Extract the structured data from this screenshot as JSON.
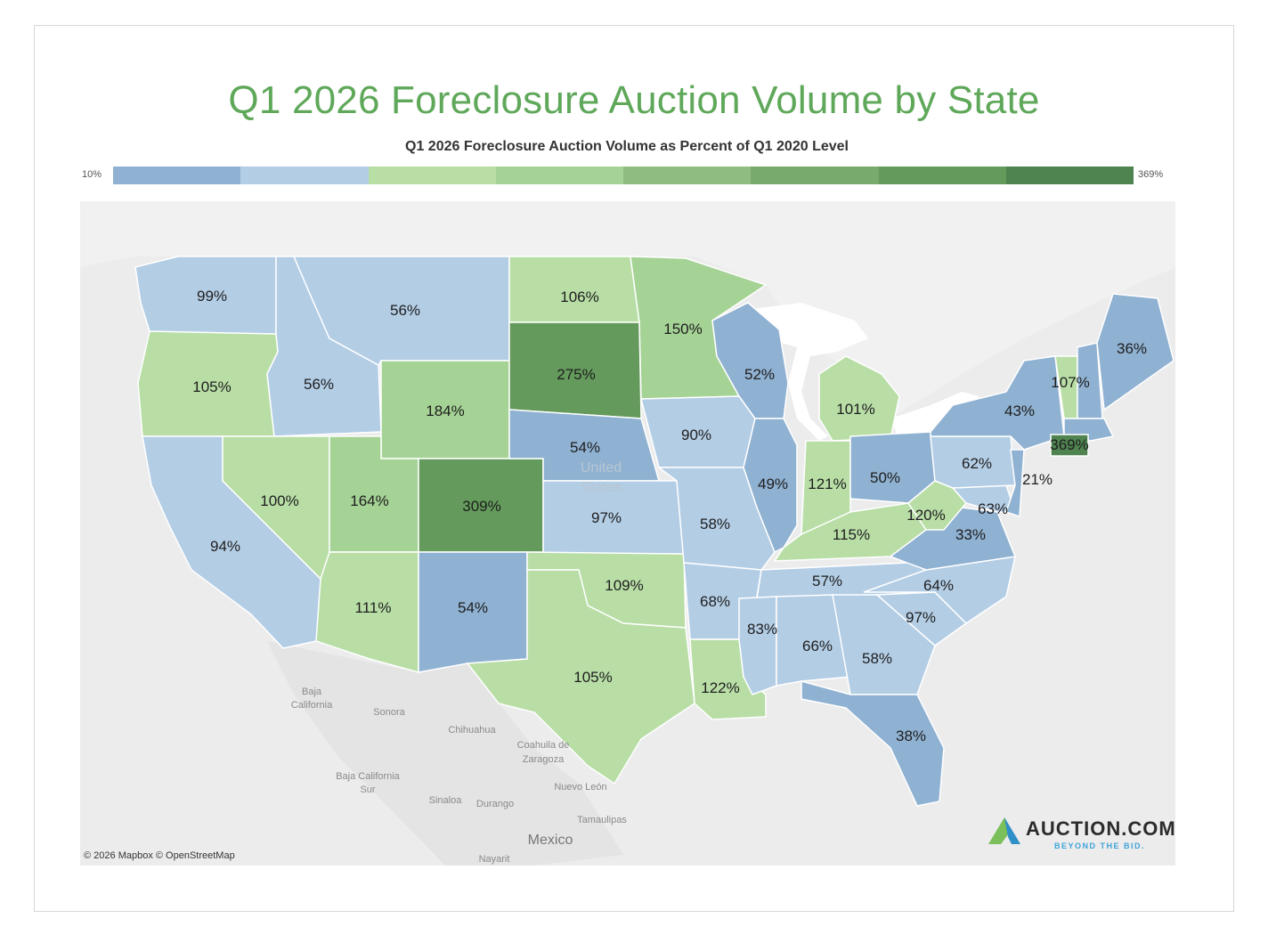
{
  "title": "Q1 2026 Foreclosure Auction Volume by State",
  "legend": {
    "label": "Q1 2026 Foreclosure Auction Volume as Percent of Q1 2020 Level",
    "min": "10%",
    "max": "369%",
    "colors": [
      "#8fb1d2",
      "#b3cde5",
      "#b8dea6",
      "#a5d295",
      "#8fbd7f",
      "#78aa6d",
      "#649a5c",
      "#4f8450"
    ]
  },
  "states": {
    "WA": "99%",
    "OR": "105%",
    "CA": "94%",
    "ID": "56%",
    "NV": "100%",
    "MT": "56%",
    "WY": "184%",
    "UT": "164%",
    "AZ": "111%",
    "CO": "309%",
    "NM": "54%",
    "ND": "106%",
    "SD": "275%",
    "NE": "54%",
    "KS": "97%",
    "OK": "109%",
    "TX": "105%",
    "MN": "150%",
    "IA": "90%",
    "MO": "58%",
    "AR": "68%",
    "LA": "122%",
    "WI": "52%",
    "IL": "49%",
    "MI": "101%",
    "IN": "121%",
    "OH": "50%",
    "KY": "115%",
    "TN": "57%",
    "MS": "83%",
    "AL": "66%",
    "GA": "58%",
    "FL": "38%",
    "SC": "97%",
    "NC": "64%",
    "VA": "33%",
    "WV": "120%",
    "MD": "63%",
    "PA": "62%",
    "NY": "43%",
    "NJ": "21%",
    "VT": "107%",
    "ME": "36%",
    "CT": "369%"
  },
  "map_labels": {
    "united_states": [
      "United",
      "States"
    ],
    "mexico": "Mexico",
    "regions": [
      "Baja",
      "California",
      "Sonora",
      "Chihuahua",
      "Coahuila de",
      "Zaragoza",
      "Baja California",
      "Sur",
      "Nuevo León",
      "Sinaloa",
      "Durango",
      "Tamaulipas",
      "Nayarit"
    ]
  },
  "credit": "© 2026 Mapbox  © OpenStreetMap",
  "logo": {
    "name": "AUCTION.COM",
    "tagline": "BEYOND THE BID."
  }
}
